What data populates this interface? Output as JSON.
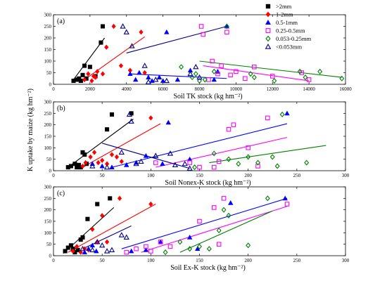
{
  "figure": {
    "ylabel": "K uptake by maize (kg hm⁻²)"
  },
  "legend": {
    "entries": [
      {
        "name": ">2mm",
        "color": "#000000",
        "marker": "filled-square"
      },
      {
        "name": "1-2mm",
        "color": "#ff0000",
        "marker": "filled-diamond"
      },
      {
        "name": "0.5-1mm",
        "color": "#0000ff",
        "marker": "filled-triangle"
      },
      {
        "name": "0.25-0.5mm",
        "color": "#ff00ff",
        "marker": "open-square"
      },
      {
        "name": "0.053-0.25mm",
        "color": "#008000",
        "marker": "open-diamond"
      },
      {
        "name": "<0.053mm",
        "color": "#00008b",
        "marker": "open-triangle"
      }
    ]
  },
  "chart_data": [
    {
      "type": "scatter",
      "panel_label": "(a)",
      "xlabel": "Soil TK stock (kg hm⁻²)",
      "xlim": [
        0,
        16000
      ],
      "ylim": [
        0,
        300
      ],
      "xticks": [
        0,
        2000,
        4000,
        6000,
        8000,
        10000,
        12000,
        14000,
        16000
      ],
      "yticks": [
        0,
        50,
        100,
        150,
        200,
        250,
        300
      ],
      "series": [
        {
          "name": ">2mm",
          "points": [
            [
              1100,
              15
            ],
            [
              1300,
              20
            ],
            [
              1400,
              25
            ],
            [
              1500,
              15
            ],
            [
              1600,
              40
            ],
            [
              1700,
              80
            ],
            [
              1800,
              25
            ],
            [
              2000,
              75
            ],
            [
              2300,
              35
            ],
            [
              2600,
              180
            ],
            [
              2700,
              250
            ]
          ],
          "fit": [
            [
              1000,
              10
            ],
            [
              2800,
              200
            ]
          ]
        },
        {
          "name": "1-2mm",
          "points": [
            [
              1700,
              20
            ],
            [
              1900,
              45
            ],
            [
              2100,
              15
            ],
            [
              2200,
              35
            ],
            [
              2300,
              30
            ],
            [
              2400,
              55
            ],
            [
              2700,
              45
            ],
            [
              2900,
              160
            ],
            [
              3300,
              250
            ],
            [
              3700,
              80
            ],
            [
              4200,
              60
            ],
            [
              4800,
              225
            ],
            [
              5000,
              50
            ]
          ],
          "fit": [
            [
              1700,
              20
            ],
            [
              5000,
              205
            ]
          ]
        },
        {
          "name": "0.5-1mm",
          "points": [
            [
              4200,
              45
            ],
            [
              4500,
              20
            ],
            [
              4700,
              50
            ],
            [
              5200,
              30
            ],
            [
              5400,
              15
            ],
            [
              5800,
              30
            ],
            [
              6000,
              15
            ],
            [
              6200,
              225
            ],
            [
              6800,
              20
            ],
            [
              7500,
              60
            ],
            [
              8800,
              20
            ],
            [
              9000,
              55
            ],
            [
              9500,
              250
            ]
          ],
          "fit": [
            [
              4200,
              45
            ],
            [
              9500,
              25
            ]
          ]
        },
        {
          "name": "0.25-0.5mm",
          "points": [
            [
              8100,
              250
            ],
            [
              8200,
              215
            ],
            [
              8500,
              20
            ],
            [
              8700,
              100
            ],
            [
              9000,
              45
            ],
            [
              9200,
              80
            ],
            [
              9500,
              225
            ],
            [
              9700,
              40
            ],
            [
              10000,
              55
            ],
            [
              10500,
              25
            ],
            [
              11000,
              75
            ],
            [
              12000,
              35
            ],
            [
              13600,
              50
            ],
            [
              14000,
              20
            ]
          ],
          "fit": [
            [
              8200,
              80
            ],
            [
              14000,
              15
            ]
          ]
        },
        {
          "name": "0.053-0.25mm",
          "points": [
            [
              7000,
              75
            ],
            [
              7600,
              30
            ],
            [
              7800,
              45
            ],
            [
              8000,
              15
            ],
            [
              8300,
              20
            ],
            [
              8800,
              55
            ],
            [
              9500,
              250
            ],
            [
              10800,
              45
            ],
            [
              11000,
              30
            ],
            [
              12100,
              15
            ],
            [
              13500,
              55
            ],
            [
              13800,
              30
            ],
            [
              14600,
              55
            ],
            [
              15800,
              25
            ]
          ],
          "fit": [
            [
              8000,
              100
            ],
            [
              15800,
              30
            ]
          ]
        },
        {
          "name": "<0.053mm",
          "points": [
            [
              3800,
              250
            ],
            [
              4000,
              225
            ],
            [
              4300,
              165
            ],
            [
              5000,
              80
            ],
            [
              5200,
              10
            ],
            [
              5600,
              20
            ],
            [
              6200,
              15
            ],
            [
              7500,
              45
            ],
            [
              7800,
              75
            ],
            [
              8000,
              30
            ]
          ],
          "fit": [
            [
              4000,
              135
            ],
            [
              9500,
              250
            ]
          ]
        }
      ]
    },
    {
      "type": "scatter",
      "panel_label": "(b)",
      "xlabel": "Soil Nonex-K stock (kg hm⁻²)",
      "xlim": [
        0,
        300
      ],
      "ylim": [
        0,
        300
      ],
      "xticks": [
        0,
        50,
        100,
        150,
        200,
        250,
        300
      ],
      "yticks": [
        0,
        50,
        100,
        150,
        200,
        250,
        300
      ],
      "series": [
        {
          "name": ">2mm",
          "points": [
            [
              15,
              15
            ],
            [
              18,
              20
            ],
            [
              22,
              30
            ],
            [
              24,
              15
            ],
            [
              26,
              25
            ],
            [
              28,
              15
            ],
            [
              30,
              80
            ],
            [
              32,
              70
            ],
            [
              34,
              30
            ],
            [
              55,
              180
            ],
            [
              60,
              245
            ],
            [
              80,
              250
            ]
          ],
          "fit": [
            [
              15,
              15
            ],
            [
              82,
              225
            ]
          ]
        },
        {
          "name": "1-2mm",
          "points": [
            [
              30,
              20
            ],
            [
              33,
              35
            ],
            [
              38,
              60
            ],
            [
              42,
              80
            ],
            [
              46,
              35
            ],
            [
              50,
              45
            ],
            [
              55,
              30
            ],
            [
              60,
              70
            ],
            [
              65,
              60
            ],
            [
              70,
              40
            ],
            [
              100,
              230
            ]
          ],
          "fit": [
            [
              30,
              15
            ],
            [
              110,
              205
            ]
          ]
        },
        {
          "name": "0.5-1mm",
          "points": [
            [
              40,
              30
            ],
            [
              50,
              20
            ],
            [
              60,
              15
            ],
            [
              75,
              25
            ],
            [
              85,
              35
            ],
            [
              95,
              65
            ],
            [
              112,
              30
            ],
            [
              118,
              210
            ],
            [
              140,
              50
            ],
            [
              240,
              250
            ]
          ],
          "fit": [
            [
              60,
              15
            ],
            [
              240,
              205
            ]
          ]
        },
        {
          "name": "0.25-0.5mm",
          "points": [
            [
              105,
              35
            ],
            [
              140,
              35
            ],
            [
              150,
              15
            ],
            [
              165,
              15
            ],
            [
              170,
              40
            ],
            [
              180,
              180
            ],
            [
              185,
              200
            ],
            [
              200,
              100
            ],
            [
              210,
              20
            ],
            [
              220,
              230
            ]
          ],
          "fit": [
            [
              105,
              15
            ],
            [
              240,
              145
            ]
          ]
        },
        {
          "name": "0.053-0.25mm",
          "points": [
            [
              145,
              15
            ],
            [
              165,
              75
            ],
            [
              180,
              50
            ],
            [
              190,
              30
            ],
            [
              200,
              60
            ],
            [
              210,
              35
            ],
            [
              225,
              60
            ],
            [
              230,
              20
            ],
            [
              235,
              245
            ],
            [
              260,
              35
            ]
          ],
          "fit": [
            [
              160,
              35
            ],
            [
              280,
              110
            ]
          ]
        },
        {
          "name": "<0.053mm",
          "points": [
            [
              40,
              20
            ],
            [
              55,
              15
            ],
            [
              70,
              80
            ],
            [
              78,
              245
            ],
            [
              80,
              215
            ],
            [
              85,
              30
            ],
            [
              90,
              40
            ],
            [
              105,
              65
            ],
            [
              120,
              75
            ],
            [
              125,
              25
            ],
            [
              135,
              30
            ],
            [
              140,
              10
            ]
          ],
          "fit": [
            [
              50,
              120
            ],
            [
              140,
              10
            ]
          ]
        }
      ]
    },
    {
      "type": "scatter",
      "panel_label": "(c)",
      "xlabel": "Soil Ex-K stock (kg hm⁻²)",
      "xlim": [
        0,
        300
      ],
      "ylim": [
        0,
        300
      ],
      "xticks": [
        0,
        50,
        100,
        150,
        200,
        250,
        300
      ],
      "yticks": [
        0,
        50,
        100,
        150,
        200,
        250,
        300
      ],
      "series": [
        {
          "name": ">2mm",
          "points": [
            [
              12,
              20
            ],
            [
              15,
              35
            ],
            [
              18,
              45
            ],
            [
              20,
              30
            ],
            [
              22,
              15
            ],
            [
              25,
              25
            ],
            [
              28,
              70
            ],
            [
              30,
              80
            ],
            [
              35,
              160
            ],
            [
              45,
              225
            ],
            [
              58,
              250
            ]
          ],
          "fit": [
            [
              10,
              10
            ],
            [
              62,
              210
            ]
          ]
        },
        {
          "name": "1-2mm",
          "points": [
            [
              20,
              20
            ],
            [
              24,
              40
            ],
            [
              28,
              15
            ],
            [
              32,
              30
            ],
            [
              36,
              25
            ],
            [
              40,
              115
            ],
            [
              45,
              60
            ],
            [
              50,
              175
            ],
            [
              55,
              60
            ],
            [
              68,
              250
            ],
            [
              100,
              225
            ]
          ],
          "fit": [
            [
              15,
              15
            ],
            [
              105,
              225
            ]
          ]
        },
        {
          "name": "0.5-1mm",
          "points": [
            [
              32,
              15
            ],
            [
              36,
              30
            ],
            [
              40,
              45
            ],
            [
              44,
              20
            ],
            [
              80,
              20
            ],
            [
              95,
              25
            ],
            [
              110,
              60
            ],
            [
              140,
              80
            ],
            [
              148,
              30
            ],
            [
              182,
              230
            ],
            [
              238,
              250
            ]
          ],
          "fit": [
            [
              70,
              30
            ],
            [
              240,
              250
            ]
          ]
        },
        {
          "name": "0.25-0.5mm",
          "points": [
            [
              75,
              15
            ],
            [
              85,
              30
            ],
            [
              95,
              40
            ],
            [
              100,
              20
            ],
            [
              110,
              60
            ],
            [
              120,
              40
            ],
            [
              150,
              150
            ],
            [
              165,
              210
            ],
            [
              170,
              50
            ],
            [
              175,
              250
            ],
            [
              240,
              225
            ]
          ],
          "fit": [
            [
              90,
              15
            ],
            [
              240,
              215
            ]
          ]
        },
        {
          "name": "0.053-0.25mm",
          "points": [
            [
              115,
              15
            ],
            [
              130,
              60
            ],
            [
              140,
              30
            ],
            [
              150,
              40
            ],
            [
              160,
              30
            ],
            [
              170,
              110
            ],
            [
              175,
              200
            ],
            [
              180,
              175
            ],
            [
              200,
              45
            ],
            [
              220,
              250
            ]
          ],
          "fit": [
            [
              130,
              15
            ],
            [
              225,
              195
            ]
          ]
        },
        {
          "name": "<0.053mm",
          "points": [
            [
              30,
              30
            ],
            [
              40,
              25
            ],
            [
              45,
              60
            ],
            [
              50,
              45
            ],
            [
              55,
              20
            ],
            [
              60,
              25
            ],
            [
              70,
              90
            ],
            [
              75,
              80
            ]
          ],
          "fit": [
            [
              30,
              30
            ],
            [
              80,
              130
            ]
          ]
        }
      ]
    }
  ]
}
